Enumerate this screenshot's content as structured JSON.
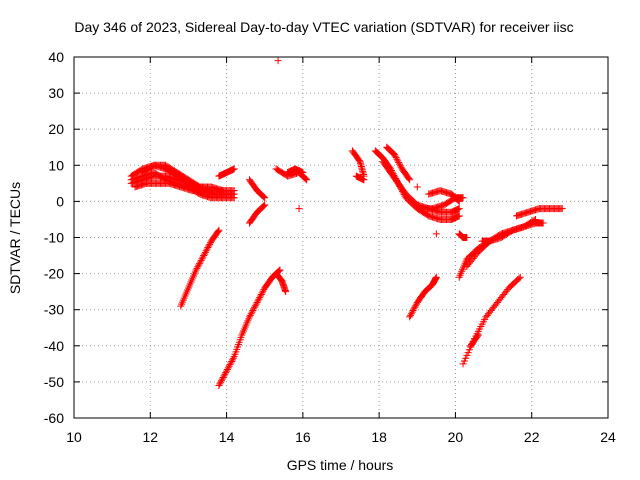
{
  "chart_data": {
    "type": "scatter",
    "title": "Day 346 of 2023, Sidereal Day-to-day VTEC variation (SDTVAR) for receiver iisc",
    "xlabel": "GPS time / hours",
    "ylabel": "SDTVAR / TECUs",
    "xlim": [
      10,
      24
    ],
    "ylim": [
      -60,
      40
    ],
    "xticks": [
      "10",
      "12",
      "14",
      "16",
      "18",
      "20",
      "22",
      "24"
    ],
    "yticks": [
      "40",
      "30",
      "20",
      "10",
      "0",
      "-10",
      "-20",
      "-30",
      "-40",
      "-50",
      "-60"
    ],
    "grid": true,
    "marker": "+",
    "color": "#ff0000",
    "tracks": [
      {
        "x": [
          11.5,
          11.8,
          12.1,
          12.4,
          12.7,
          13.0,
          13.3,
          13.6,
          13.9,
          14.2
        ],
        "y": [
          5,
          6,
          7,
          7,
          6,
          5,
          4,
          3,
          3,
          3
        ]
      },
      {
        "x": [
          11.5,
          11.8,
          12.1,
          12.4,
          12.7,
          13.0,
          13.3,
          13.6,
          13.9,
          14.2
        ],
        "y": [
          7,
          9,
          10,
          9,
          7,
          5,
          3,
          2,
          2,
          2
        ]
      },
      {
        "x": [
          11.5,
          11.8,
          12.1,
          12.4,
          12.7,
          13.0,
          13.3,
          13.6,
          13.9,
          14.2
        ],
        "y": [
          6,
          7,
          8,
          6,
          5,
          4,
          2,
          1,
          1,
          1
        ]
      },
      {
        "x": [
          11.6,
          11.9,
          12.2,
          12.5,
          12.8,
          13.1,
          13.4,
          13.7,
          14.0
        ],
        "y": [
          4,
          5,
          5,
          5,
          4,
          3,
          3,
          2,
          2
        ]
      },
      {
        "x": [
          11.8,
          12.1,
          12.4,
          12.7,
          13.0,
          13.3,
          13.6,
          13.9
        ],
        "y": [
          8,
          10,
          10,
          8,
          6,
          4,
          4,
          3
        ]
      },
      {
        "x": [
          13.8,
          14.0,
          14.2
        ],
        "y": [
          7,
          8,
          9
        ]
      },
      {
        "x": [
          12.8,
          13.0,
          13.2,
          13.4,
          13.6,
          13.8
        ],
        "y": [
          -29,
          -24,
          -19,
          -15,
          -11,
          -8
        ]
      },
      {
        "x": [
          13.8,
          14.0,
          14.2,
          14.4,
          14.6,
          14.8,
          15.0,
          15.2,
          15.4
        ],
        "y": [
          -51,
          -47,
          -43,
          -37,
          -32,
          -28,
          -24,
          -21,
          -19
        ]
      },
      {
        "x": [
          15.3,
          15.45,
          15.55
        ],
        "y": [
          -20,
          -22,
          -25
        ]
      },
      {
        "x": [
          14.6,
          14.8,
          15.0
        ],
        "y": [
          6,
          3,
          1
        ]
      },
      {
        "x": [
          14.6,
          14.8,
          15.0
        ],
        "y": [
          -6,
          -3,
          -1
        ]
      },
      {
        "x": [
          15.3,
          15.6,
          15.9,
          16.1
        ],
        "y": [
          9,
          7,
          8,
          6
        ]
      },
      {
        "x": [
          15.6,
          15.8,
          16.0
        ],
        "y": [
          8,
          9,
          8
        ]
      },
      {
        "x": [
          15.9
        ],
        "y": [
          -2
        ]
      },
      {
        "x": [
          15.35
        ],
        "y": [
          39
        ]
      },
      {
        "x": [
          17.3,
          17.5,
          17.6
        ],
        "y": [
          14,
          11,
          7
        ]
      },
      {
        "x": [
          17.4,
          17.6
        ],
        "y": [
          7,
          6
        ]
      },
      {
        "x": [
          17.9,
          18.1,
          18.3,
          18.5,
          18.7,
          19.0,
          19.3,
          19.6,
          19.9,
          20.1
        ],
        "y": [
          14,
          12,
          9,
          5,
          1,
          -2,
          -4,
          -5,
          -5,
          -4
        ]
      },
      {
        "x": [
          18.1,
          18.3,
          18.5,
          18.7,
          19.0,
          19.3,
          19.6,
          19.9,
          20.1
        ],
        "y": [
          11,
          8,
          5,
          2,
          -1,
          -2,
          -3,
          -3,
          -2
        ]
      },
      {
        "x": [
          18.2,
          18.4,
          18.6,
          18.8
        ],
        "y": [
          15,
          13,
          9,
          6
        ]
      },
      {
        "x": [
          19.1,
          19.4,
          19.7,
          20.0,
          20.2
        ],
        "y": [
          -2,
          -2,
          -1,
          1,
          1
        ]
      },
      {
        "x": [
          19.3,
          19.6,
          19.9,
          20.1
        ],
        "y": [
          2,
          3,
          2,
          0
        ]
      },
      {
        "x": [
          19.0
        ],
        "y": [
          4
        ]
      },
      {
        "x": [
          19.5
        ],
        "y": [
          -9
        ]
      },
      {
        "x": [
          18.8,
          19.0,
          19.2,
          19.4,
          19.5
        ],
        "y": [
          -32,
          -28,
          -25,
          -23,
          -21
        ]
      },
      {
        "x": [
          20.1,
          20.2,
          20.3
        ],
        "y": [
          -9,
          -10,
          -10
        ]
      },
      {
        "x": [
          20.1,
          20.3,
          20.6,
          20.9,
          21.2,
          21.5,
          21.8,
          22.1,
          22.3
        ],
        "y": [
          -21,
          -16,
          -13,
          -11,
          -9,
          -8,
          -7,
          -6,
          -6
        ]
      },
      {
        "x": [
          20.3,
          20.6,
          20.9,
          21.2,
          21.5,
          21.8,
          22.1
        ],
        "y": [
          -18,
          -14,
          -11,
          -10,
          -8,
          -7,
          -5
        ]
      },
      {
        "x": [
          20.7,
          20.9
        ],
        "y": [
          -11,
          -11
        ]
      },
      {
        "x": [
          21.6,
          21.9,
          22.2,
          22.5,
          22.8
        ],
        "y": [
          -4,
          -3,
          -2,
          -2,
          -2
        ]
      },
      {
        "x": [
          20.2,
          20.5,
          20.8,
          21.1,
          21.4,
          21.7
        ],
        "y": [
          -45,
          -38,
          -32,
          -28,
          -24,
          -21
        ]
      },
      {
        "x": [
          20.4,
          20.6
        ],
        "y": [
          -40,
          -37
        ]
      }
    ]
  }
}
